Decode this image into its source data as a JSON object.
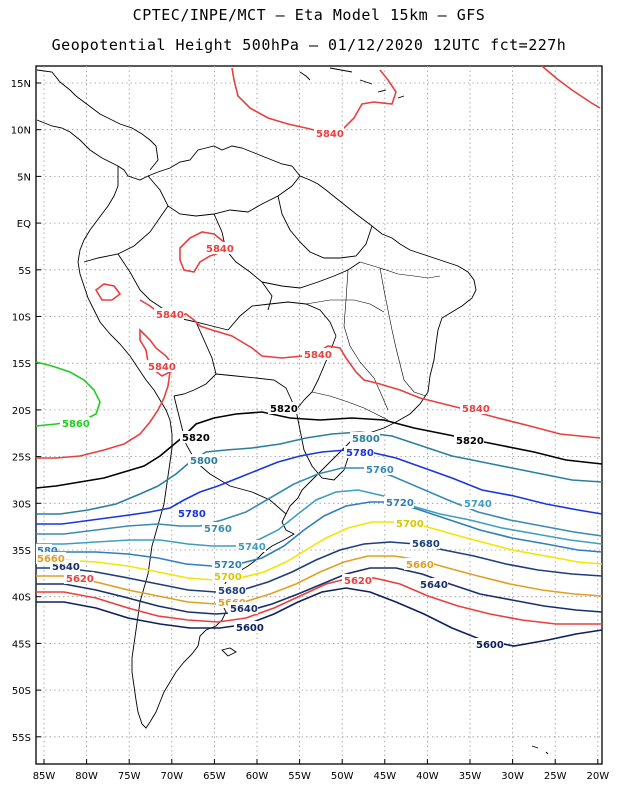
{
  "header": {
    "line1": "CPTEC/INPE/MCT –  Eta Model 15km – GFS",
    "line2": "Geopotential Height 500hPa – 01/12/2020 12UTC fct=227h"
  },
  "axes": {
    "lon_labels": [
      "85W",
      "80W",
      "75W",
      "70W",
      "65W",
      "60W",
      "55W",
      "50W",
      "45W",
      "40W",
      "35W",
      "30W",
      "25W",
      "20W"
    ],
    "lat_labels": [
      "15N",
      "10N",
      "5N",
      "EQ",
      "5S",
      "10S",
      "15S",
      "20S",
      "25S",
      "30S",
      "35S",
      "40S",
      "45S",
      "50S",
      "55S"
    ]
  },
  "colors": {
    "c5840": "#e8403f",
    "c5820": "#000000",
    "c5800": "#2a7f9e",
    "c5780": "#1a35e0",
    "c5760": "#3b8ab0",
    "c5740": "#3e9ec0",
    "c5720": "#2f7fb8",
    "c5700": "#f2e600",
    "c5680": "#1f3f7a",
    "c5660": "#e0a020",
    "c5640": "#1a2f6a",
    "c5620": "#e8403f",
    "c5600": "#0e2060",
    "c5860": "#22cc22",
    "coast": "#000000"
  },
  "contour_labels": {
    "l5840a": "5840",
    "l5840b": "5840",
    "l5840c": "5840",
    "l5840d": "5840",
    "l5840e": "5840",
    "l5840f": "5840",
    "l5860": "5860",
    "l5820a": "5820",
    "l5820b": "5820",
    "l5820c": "5820",
    "l5800a": "5800",
    "l5800b": "5800",
    "l5780a": "5780",
    "l5780b": "5780",
    "l5760a": "5760",
    "l5760b": "5760",
    "l5740a": "5740",
    "l5740b": "5740",
    "l5720a": "5720",
    "l5720b": "5720",
    "l5700a": "5700",
    "l5700b": "5700",
    "l5680a": "5680",
    "l5680b": "5680",
    "l5660a": "5660",
    "l5660b": "5660",
    "l5640a": "5640",
    "l5640b": "5640",
    "l5640c": "5640",
    "l5620a": "5620",
    "l5620b": "5620",
    "l5600a": "5600",
    "l5600b": "5600",
    "edge580": "580",
    "edge5660": "5660",
    "edge5640": "5640"
  }
}
